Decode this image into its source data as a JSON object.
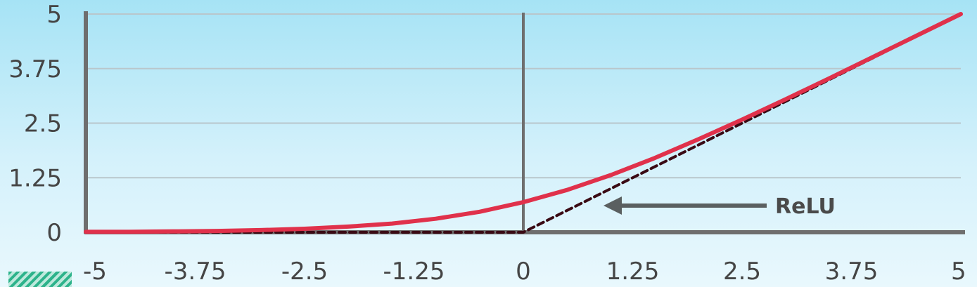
{
  "chart_data": {
    "type": "line",
    "title": "",
    "xlabel": "",
    "ylabel": "",
    "xlim": [
      -5,
      5
    ],
    "ylim": [
      0,
      5
    ],
    "x_ticks": [
      "-5",
      "-3.75",
      "-2.5",
      "-1.25",
      "0",
      "1.25",
      "2.5",
      "3.75",
      "5"
    ],
    "y_ticks": [
      "0",
      "1.25",
      "2.5",
      "3.75",
      "5"
    ],
    "grid": "horizontal",
    "series": [
      {
        "name": "",
        "style": "solid",
        "color": "#e0314b",
        "x": [
          -5,
          -4.5,
          -4,
          -3.5,
          -3,
          -2.5,
          -2,
          -1.5,
          -1,
          -0.5,
          0,
          0.5,
          1,
          1.5,
          2,
          2.5,
          3,
          3.5,
          4,
          4.5,
          5
        ],
        "y": [
          0.01,
          0.01,
          0.02,
          0.03,
          0.05,
          0.08,
          0.13,
          0.2,
          0.31,
          0.47,
          0.69,
          0.97,
          1.31,
          1.7,
          2.13,
          2.58,
          3.05,
          3.53,
          4.02,
          4.51,
          5.0
        ]
      },
      {
        "name": "ReLU",
        "style": "dashed",
        "color": "#3a0a14",
        "x": [
          -5,
          0,
          5
        ],
        "y": [
          0,
          0,
          5
        ]
      }
    ],
    "annotations": [
      {
        "text": "ReLU",
        "points_to_series": "ReLU",
        "arrow_color": "#5a5f60"
      }
    ]
  },
  "colors": {
    "axis": "#6e6e6e",
    "grid": "#b9c7cc"
  },
  "icons": {
    "bottom_left": "logo-mark"
  }
}
